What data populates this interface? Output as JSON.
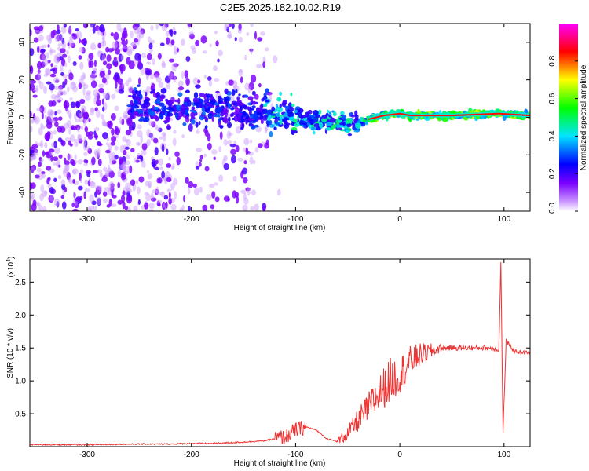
{
  "title": "C2E5.2025.182.10.02.R19",
  "chart_data": [
    {
      "type": "heatmap",
      "xlabel": "Height of straight line (km)",
      "ylabel": "Frequency (Hz)",
      "xlim": [
        -355,
        125
      ],
      "ylim": [
        -50,
        50
      ],
      "xticks": [
        -300,
        -200,
        -100,
        0,
        100
      ],
      "yticks": [
        -40,
        -20,
        0,
        20,
        40
      ],
      "colorbar": {
        "label": "Normalized spectral amplitude",
        "range": [
          0,
          1
        ],
        "ticks": [
          "0.0",
          "0.2",
          "0.4",
          "0.6",
          "0.8"
        ],
        "colormap": [
          "#ffffff",
          "#7a00ff",
          "#0000ff",
          "#00e5ff",
          "#00ff00",
          "#ffff00",
          "#ff0000",
          "#ff00ff"
        ]
      },
      "ridge": [
        {
          "x": -250,
          "y": 6
        },
        {
          "x": -200,
          "y": 5
        },
        {
          "x": -150,
          "y": 4
        },
        {
          "x": -120,
          "y": 2
        },
        {
          "x": -100,
          "y": 0
        },
        {
          "x": -80,
          "y": -2
        },
        {
          "x": -60,
          "y": -3
        },
        {
          "x": -45,
          "y": -4
        },
        {
          "x": -30,
          "y": -1
        },
        {
          "x": -15,
          "y": 1
        },
        {
          "x": 0,
          "y": 2
        },
        {
          "x": 10,
          "y": 1
        },
        {
          "x": 50,
          "y": 1
        },
        {
          "x": 95,
          "y": 2
        },
        {
          "x": 125,
          "y": 1
        }
      ]
    },
    {
      "type": "line",
      "xlabel": "Height of straight line (km)",
      "ylabel": "SNR (10 * v/v)",
      "y_scale_label": "(x10",
      "y_scale_exponent": "4",
      "xlim": [
        -355,
        125
      ],
      "ylim": [
        0,
        2.85
      ],
      "xticks": [
        -300,
        -200,
        -100,
        0,
        100
      ],
      "yticks": [
        "0.5",
        "1.0",
        "1.5",
        "2.0",
        "2.5"
      ],
      "line_color": "#ee3333",
      "series": [
        {
          "x": [
            -355,
            -300,
            -250,
            -220,
            -200,
            -180,
            -150,
            -130,
            -110,
            -100,
            -90,
            -80,
            -70,
            -60,
            -50,
            -40,
            -30,
            -20,
            -10,
            0,
            10,
            20,
            30,
            40,
            60,
            80,
            90,
            95,
            97,
            99,
            102,
            110,
            125
          ],
          "y": [
            0.03,
            0.03,
            0.04,
            0.04,
            0.05,
            0.05,
            0.07,
            0.09,
            0.15,
            0.25,
            0.3,
            0.25,
            0.12,
            0.08,
            0.2,
            0.4,
            0.6,
            0.8,
            1.0,
            1.1,
            1.3,
            1.4,
            1.45,
            1.5,
            1.5,
            1.5,
            1.5,
            1.45,
            2.8,
            0.2,
            1.6,
            1.45,
            1.42
          ]
        }
      ]
    }
  ]
}
